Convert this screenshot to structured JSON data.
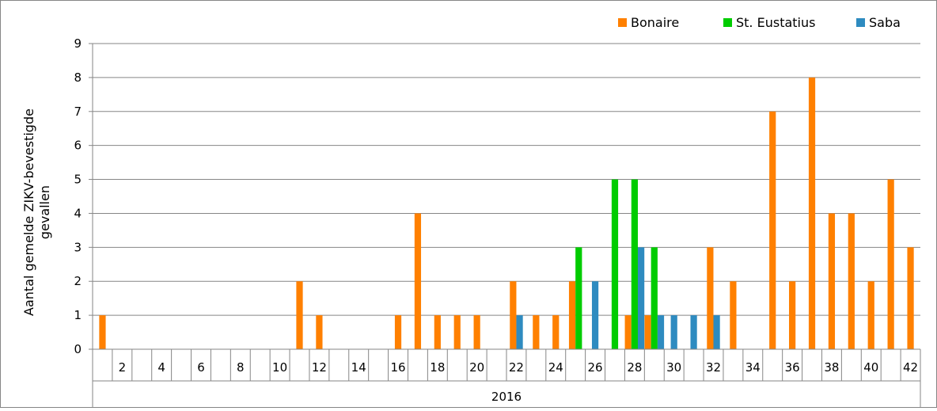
{
  "chart_data": {
    "type": "bar",
    "ylabel_line1": "Aantal gemelde ZIKV-bevestigde",
    "ylabel_line2": "gevallen",
    "year_label": "2016",
    "ylim": [
      0,
      9
    ],
    "yticks": [
      0,
      1,
      2,
      3,
      4,
      5,
      6,
      7,
      8,
      9
    ],
    "grid": true,
    "legend_position": "top-right",
    "weeks": [
      1,
      2,
      3,
      4,
      5,
      6,
      7,
      8,
      9,
      10,
      11,
      12,
      13,
      14,
      15,
      16,
      17,
      18,
      19,
      20,
      21,
      22,
      23,
      24,
      25,
      26,
      27,
      28,
      29,
      30,
      31,
      32,
      33,
      34,
      35,
      36,
      37,
      38,
      39,
      40,
      41,
      42
    ],
    "tick_labels": [
      "2",
      "4",
      "6",
      "8",
      "10",
      "12",
      "14",
      "16",
      "18",
      "20",
      "22",
      "24",
      "26",
      "28",
      "30",
      "32",
      "34",
      "36",
      "38",
      "40",
      "42"
    ],
    "series": [
      {
        "name": "Bonaire",
        "color": "#FF8000",
        "values": [
          1,
          0,
          0,
          0,
          0,
          0,
          0,
          0,
          0,
          0,
          2,
          1,
          0,
          0,
          0,
          1,
          4,
          1,
          1,
          1,
          0,
          2,
          1,
          1,
          2,
          0,
          0,
          1,
          1,
          0,
          0,
          3,
          2,
          0,
          7,
          2,
          8,
          4,
          4,
          2,
          5,
          3
        ]
      },
      {
        "name": "St. Eustatius",
        "color": "#00CC00",
        "values": [
          0,
          0,
          0,
          0,
          0,
          0,
          0,
          0,
          0,
          0,
          0,
          0,
          0,
          0,
          0,
          0,
          0,
          0,
          0,
          0,
          0,
          0,
          0,
          0,
          3,
          0,
          5,
          5,
          3,
          0,
          0,
          0,
          0,
          0,
          0,
          0,
          0,
          0,
          0,
          0,
          0,
          0
        ]
      },
      {
        "name": "Saba",
        "color": "#2E8BC0",
        "values": [
          0,
          0,
          0,
          0,
          0,
          0,
          0,
          0,
          0,
          0,
          0,
          0,
          0,
          0,
          0,
          0,
          0,
          0,
          0,
          0,
          0,
          1,
          0,
          0,
          0,
          2,
          0,
          3,
          1,
          1,
          1,
          1,
          0,
          0,
          0,
          0,
          0,
          0,
          0,
          0,
          0,
          0
        ]
      }
    ]
  }
}
